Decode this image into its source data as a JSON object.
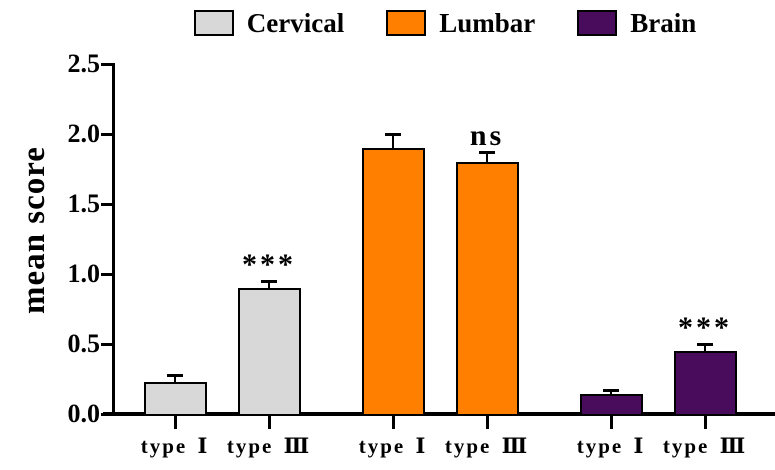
{
  "figure": {
    "background": "#ffffff",
    "axis_color": "#000000",
    "text_color": "#000000"
  },
  "chart_data": {
    "type": "bar",
    "title": "",
    "xlabel": "",
    "ylabel": "mean score",
    "ylim": [
      0,
      2.5
    ],
    "yticks": [
      0.0,
      0.5,
      1.0,
      1.5,
      2.0,
      2.5
    ],
    "grid": false,
    "legend_position": "top",
    "bar_border_color": "#000000",
    "error_bars": "upper",
    "categories_per_group": [
      "type Ⅰ",
      "type Ⅲ"
    ],
    "legend": [
      {
        "label": "Cervical",
        "color": "#d8d8d8"
      },
      {
        "label": "Lumbar",
        "color": "#ff8000"
      },
      {
        "label": "Brain",
        "color": "#490b5c"
      }
    ],
    "groups": [
      {
        "name": "Cervical",
        "color": "#d8d8d8",
        "bars": [
          {
            "label": "type Ⅰ",
            "value": 0.23,
            "error": 0.05,
            "annotation": ""
          },
          {
            "label": "type Ⅲ",
            "value": 0.9,
            "error": 0.05,
            "annotation": "***"
          }
        ]
      },
      {
        "name": "Lumbar",
        "color": "#ff8000",
        "bars": [
          {
            "label": "type Ⅰ",
            "value": 1.9,
            "error": 0.1,
            "annotation": ""
          },
          {
            "label": "type Ⅲ",
            "value": 1.8,
            "error": 0.07,
            "annotation": "ns"
          }
        ]
      },
      {
        "name": "Brain",
        "color": "#490b5c",
        "bars": [
          {
            "label": "type Ⅰ",
            "value": 0.14,
            "error": 0.03,
            "annotation": ""
          },
          {
            "label": "type Ⅲ",
            "value": 0.45,
            "error": 0.05,
            "annotation": "***"
          }
        ]
      }
    ]
  }
}
